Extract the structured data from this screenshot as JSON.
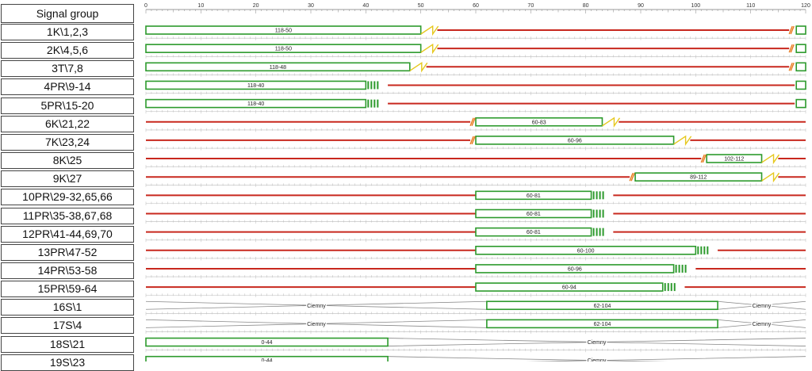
{
  "header": {
    "title": "Signal group"
  },
  "axis": {
    "min": 0,
    "max": 120,
    "tick_labels": [
      "0",
      "10",
      "20",
      "30",
      "40",
      "50",
      "60",
      "70",
      "80",
      "90",
      "100",
      "110",
      "120"
    ]
  },
  "colors": {
    "green": "#2c9a2c",
    "red": "#c8281e",
    "amber": "#e6c81e",
    "orange": "#e87a1e",
    "gray": "#888888"
  },
  "signal_groups": [
    {
      "label": "1K\\1,2,3",
      "lines": [
        [
          53,
          117
        ]
      ],
      "greens": [
        {
          "start": 0,
          "end": 50,
          "label": "118-50",
          "stripes": 0
        }
      ],
      "ambers": [
        50
      ],
      "rrs": [
        117
      ],
      "tail_green": true
    },
    {
      "label": "2K\\4,5,6",
      "lines": [
        [
          53,
          117
        ]
      ],
      "greens": [
        {
          "start": 0,
          "end": 50,
          "label": "118-50",
          "stripes": 0
        }
      ],
      "ambers": [
        50
      ],
      "rrs": [
        117
      ],
      "tail_green": true
    },
    {
      "label": "3T\\7,8",
      "lines": [
        [
          51,
          117
        ]
      ],
      "greens": [
        {
          "start": 0,
          "end": 48,
          "label": "118-48",
          "stripes": 0
        }
      ],
      "ambers": [
        48
      ],
      "rrs": [
        117
      ],
      "tail_green": true
    },
    {
      "label": "4PR\\9-14",
      "lines": [
        [
          44,
          118
        ]
      ],
      "greens": [
        {
          "start": 0,
          "end": 40,
          "label": "118-40",
          "stripes": 4
        }
      ],
      "ambers": [],
      "rrs": [],
      "tail_green": true
    },
    {
      "label": "5PR\\15-20",
      "lines": [
        [
          44,
          118
        ]
      ],
      "greens": [
        {
          "start": 0,
          "end": 40,
          "label": "118-40",
          "stripes": 4
        }
      ],
      "ambers": [],
      "rrs": [],
      "tail_green": true
    },
    {
      "label": "6K\\21,22",
      "lines": [
        [
          0,
          59
        ],
        [
          86,
          120
        ]
      ],
      "greens": [
        {
          "start": 60,
          "end": 83,
          "label": "60-83",
          "stripes": 0
        }
      ],
      "ambers": [
        83
      ],
      "rrs": [
        59
      ],
      "tail_green": false
    },
    {
      "label": "7K\\23,24",
      "lines": [
        [
          0,
          59
        ],
        [
          99,
          120
        ]
      ],
      "greens": [
        {
          "start": 60,
          "end": 96,
          "label": "60-96",
          "stripes": 0
        }
      ],
      "ambers": [
        96
      ],
      "rrs": [
        59
      ],
      "tail_green": false
    },
    {
      "label": "8K\\25",
      "lines": [
        [
          0,
          101
        ],
        [
          115,
          120
        ]
      ],
      "greens": [
        {
          "start": 102,
          "end": 112,
          "label": "102-112",
          "stripes": 0
        }
      ],
      "ambers": [
        112
      ],
      "rrs": [
        101
      ],
      "tail_green": false
    },
    {
      "label": "9K\\27",
      "lines": [
        [
          0,
          88
        ],
        [
          115,
          120
        ]
      ],
      "greens": [
        {
          "start": 89,
          "end": 112,
          "label": "89-112",
          "stripes": 0
        }
      ],
      "ambers": [
        112
      ],
      "rrs": [
        88
      ],
      "tail_green": false
    },
    {
      "label": "10PR\\29-32,65,66",
      "lines": [
        [
          0,
          60
        ],
        [
          85,
          120
        ]
      ],
      "greens": [
        {
          "start": 60,
          "end": 81,
          "label": "60-81",
          "stripes": 4
        }
      ],
      "ambers": [],
      "rrs": [],
      "tail_green": false
    },
    {
      "label": "11PR\\35-38,67,68",
      "lines": [
        [
          0,
          60
        ],
        [
          85,
          120
        ]
      ],
      "greens": [
        {
          "start": 60,
          "end": 81,
          "label": "60-81",
          "stripes": 4
        }
      ],
      "ambers": [],
      "rrs": [],
      "tail_green": false
    },
    {
      "label": "12PR\\41-44,69,70",
      "lines": [
        [
          0,
          60
        ],
        [
          85,
          120
        ]
      ],
      "greens": [
        {
          "start": 60,
          "end": 81,
          "label": "60-81",
          "stripes": 4
        }
      ],
      "ambers": [],
      "rrs": [],
      "tail_green": false
    },
    {
      "label": "13PR\\47-52",
      "lines": [
        [
          0,
          60
        ],
        [
          104,
          120
        ]
      ],
      "greens": [
        {
          "start": 60,
          "end": 100,
          "label": "60-100",
          "stripes": 4
        }
      ],
      "ambers": [],
      "rrs": [],
      "tail_green": false
    },
    {
      "label": "14PR\\53-58",
      "lines": [
        [
          0,
          60
        ],
        [
          100,
          120
        ]
      ],
      "greens": [
        {
          "start": 60,
          "end": 96,
          "label": "60-96",
          "stripes": 4
        }
      ],
      "ambers": [],
      "rrs": [],
      "tail_green": false
    },
    {
      "label": "15PR\\59-64",
      "lines": [
        [
          0,
          60
        ],
        [
          98,
          120
        ]
      ],
      "greens": [
        {
          "start": 60,
          "end": 94,
          "label": "60-94",
          "stripes": 4
        }
      ],
      "ambers": [],
      "rrs": [],
      "tail_green": false
    },
    {
      "label": "16S\\1",
      "lines": [],
      "greens": [
        {
          "start": 62,
          "end": 104,
          "label": "62-104",
          "stripes": 0
        }
      ],
      "ambers": [],
      "rrs": [],
      "tail_green": false,
      "dark": [
        {
          "start": 0,
          "end": 62,
          "label": "Ciemny"
        },
        {
          "start": 104,
          "end": 120,
          "label": "Ciemny"
        }
      ]
    },
    {
      "label": "17S\\4",
      "lines": [],
      "greens": [
        {
          "start": 62,
          "end": 104,
          "label": "62-104",
          "stripes": 0
        }
      ],
      "ambers": [],
      "rrs": [],
      "tail_green": false,
      "dark": [
        {
          "start": 0,
          "end": 62,
          "label": "Ciemny"
        },
        {
          "start": 104,
          "end": 120,
          "label": "Ciemny"
        }
      ]
    },
    {
      "label": "18S\\21",
      "lines": [],
      "greens": [
        {
          "start": 0,
          "end": 44,
          "label": "0-44",
          "stripes": 0
        }
      ],
      "ambers": [],
      "rrs": [],
      "tail_green": false,
      "dark": [
        {
          "start": 44,
          "end": 120,
          "label": "Ciemny"
        }
      ]
    },
    {
      "label": "19S\\23",
      "lines": [],
      "greens": [
        {
          "start": 0,
          "end": 44,
          "label": "0-44",
          "stripes": 0
        }
      ],
      "ambers": [],
      "rrs": [],
      "tail_green": false,
      "dark": [
        {
          "start": 44,
          "end": 120,
          "label": "Ciemny"
        }
      ]
    }
  ]
}
